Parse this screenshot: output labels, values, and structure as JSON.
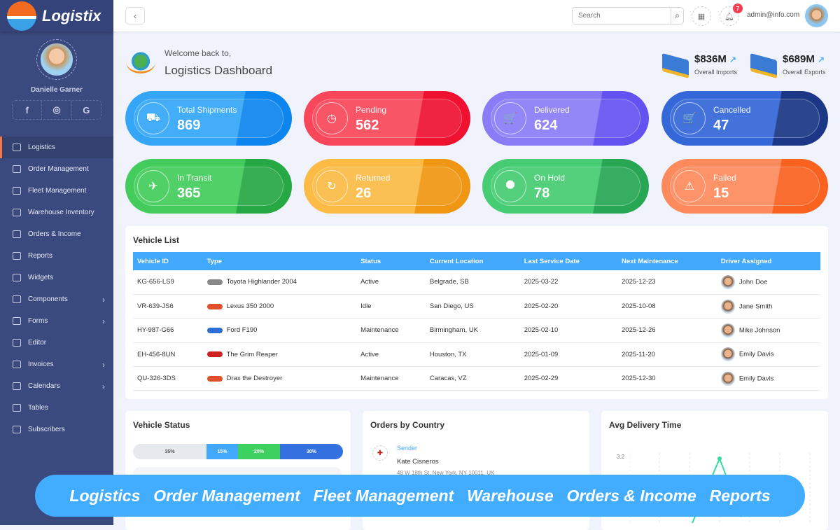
{
  "brand": {
    "name": "Logistix"
  },
  "profile": {
    "name": "Danielle Garner",
    "socials": [
      "f",
      "◎",
      "G"
    ]
  },
  "sidebar": {
    "items": [
      {
        "label": "Logistics",
        "active": true
      },
      {
        "label": "Order Management"
      },
      {
        "label": "Fleet Management"
      },
      {
        "label": "Warehouse Inventory"
      },
      {
        "label": "Orders & Income"
      },
      {
        "label": "Reports"
      },
      {
        "label": "Widgets"
      },
      {
        "label": "Components",
        "chevron": true
      },
      {
        "label": "Forms",
        "chevron": true
      },
      {
        "label": "Editor"
      },
      {
        "label": "Invoices",
        "chevron": true
      },
      {
        "label": "Calendars",
        "chevron": true
      },
      {
        "label": "Tables"
      },
      {
        "label": "Subscribers"
      }
    ]
  },
  "topbar": {
    "search_placeholder": "Search",
    "notifications": "7",
    "email": "admin@info.com"
  },
  "header": {
    "welcome": "Welcome back to,",
    "title": "Logistics Dashboard"
  },
  "stats": [
    {
      "value": "$836M",
      "label": "Overall Imports"
    },
    {
      "value": "$689M",
      "label": "Overall Exports"
    }
  ],
  "cards": [
    {
      "label": "Total Shipments",
      "value": "869",
      "icon": "truck-icon",
      "glyph": "⛟",
      "c1": "#35a6f7",
      "c2": "#0d85ee"
    },
    {
      "label": "Pending",
      "value": "562",
      "icon": "timer-icon",
      "glyph": "◷",
      "c1": "#f8475a",
      "c2": "#ee1230"
    },
    {
      "label": "Delivered",
      "value": "624",
      "icon": "cart-icon",
      "glyph": "🛒",
      "c1": "#8a7cf7",
      "c2": "#6452f0"
    },
    {
      "label": "Cancelled",
      "value": "47",
      "icon": "cart-icon",
      "glyph": "🛒",
      "c1": "#3467d8",
      "c2": "#1b3785"
    },
    {
      "label": "In Transit",
      "value": "365",
      "icon": "plane-icon",
      "glyph": "✈",
      "c1": "#43cc5c",
      "c2": "#26a844"
    },
    {
      "label": "Returned",
      "value": "26",
      "icon": "rotate-icon",
      "glyph": "↻",
      "c1": "#fbbb45",
      "c2": "#ef9612"
    },
    {
      "label": "On Hold",
      "value": "78",
      "icon": "stop-icon",
      "glyph": "⯃",
      "c1": "#46cc72",
      "c2": "#27a654"
    },
    {
      "label": "Failed",
      "value": "15",
      "icon": "warning-icon",
      "glyph": "⚠",
      "c1": "#fd8a5c",
      "c2": "#f9621f"
    }
  ],
  "vehicle_list": {
    "title": "Vehicle List",
    "columns": [
      "Vehicle ID",
      "Type",
      "Status",
      "Current Location",
      "Last Service Date",
      "Next Maintenance",
      "Driver Assigned"
    ],
    "rows": [
      [
        "KG-656-LS9",
        "Toyota Highlander 2004",
        "Active",
        "Belgrade, SB",
        "2025-03-22",
        "2025-12-23",
        "John Doe"
      ],
      [
        "VR-639-JS6",
        "Lexus 350 2000",
        "Idle",
        "San Diego, US",
        "2025-02-20",
        "2025-10-08",
        "Jane Smith"
      ],
      [
        "HY-987-G66",
        "Ford F190",
        "Maintenance",
        "Birmingham, UK",
        "2025-02-10",
        "2025-12-26",
        "Mike Johnson"
      ],
      [
        "EH-456-8UN",
        "The Grim Reaper",
        "Active",
        "Houston, TX",
        "2025-01-09",
        "2025-11-20",
        "Emily Davis"
      ],
      [
        "QU-326-3DS",
        "Drax the Destroyer",
        "Maintenance",
        "Caracas, VZ",
        "2025-02-29",
        "2025-12-30",
        "Emily Davis"
      ]
    ],
    "car_colors": [
      "#888",
      "#e0502a",
      "#2a6fd5",
      "#c22",
      "#e0502a"
    ]
  },
  "vehicle_status": {
    "title": "Vehicle Status",
    "segments": [
      {
        "label": "35%",
        "value": 35,
        "color": "#e6e9ee"
      },
      {
        "label": "15%",
        "value": 15,
        "color": "#42a8fb"
      },
      {
        "label": "20%",
        "value": 20,
        "color": "#3fd160"
      },
      {
        "label": "30%",
        "value": 30,
        "color": "#3470e0"
      }
    ]
  },
  "orders_by_country": {
    "title": "Orders by Country",
    "sender_label": "Sender",
    "name": "Kate Cisneros",
    "address": "48 W 18th St, New York, NY 10011, UK"
  },
  "avg_delivery": {
    "title": "Avg Delivery Time",
    "tick": "3.2"
  },
  "floatbar": [
    "Logistics",
    "Order Management",
    "Fleet Management",
    "Warehouse",
    "Orders & Income",
    "Reports"
  ]
}
